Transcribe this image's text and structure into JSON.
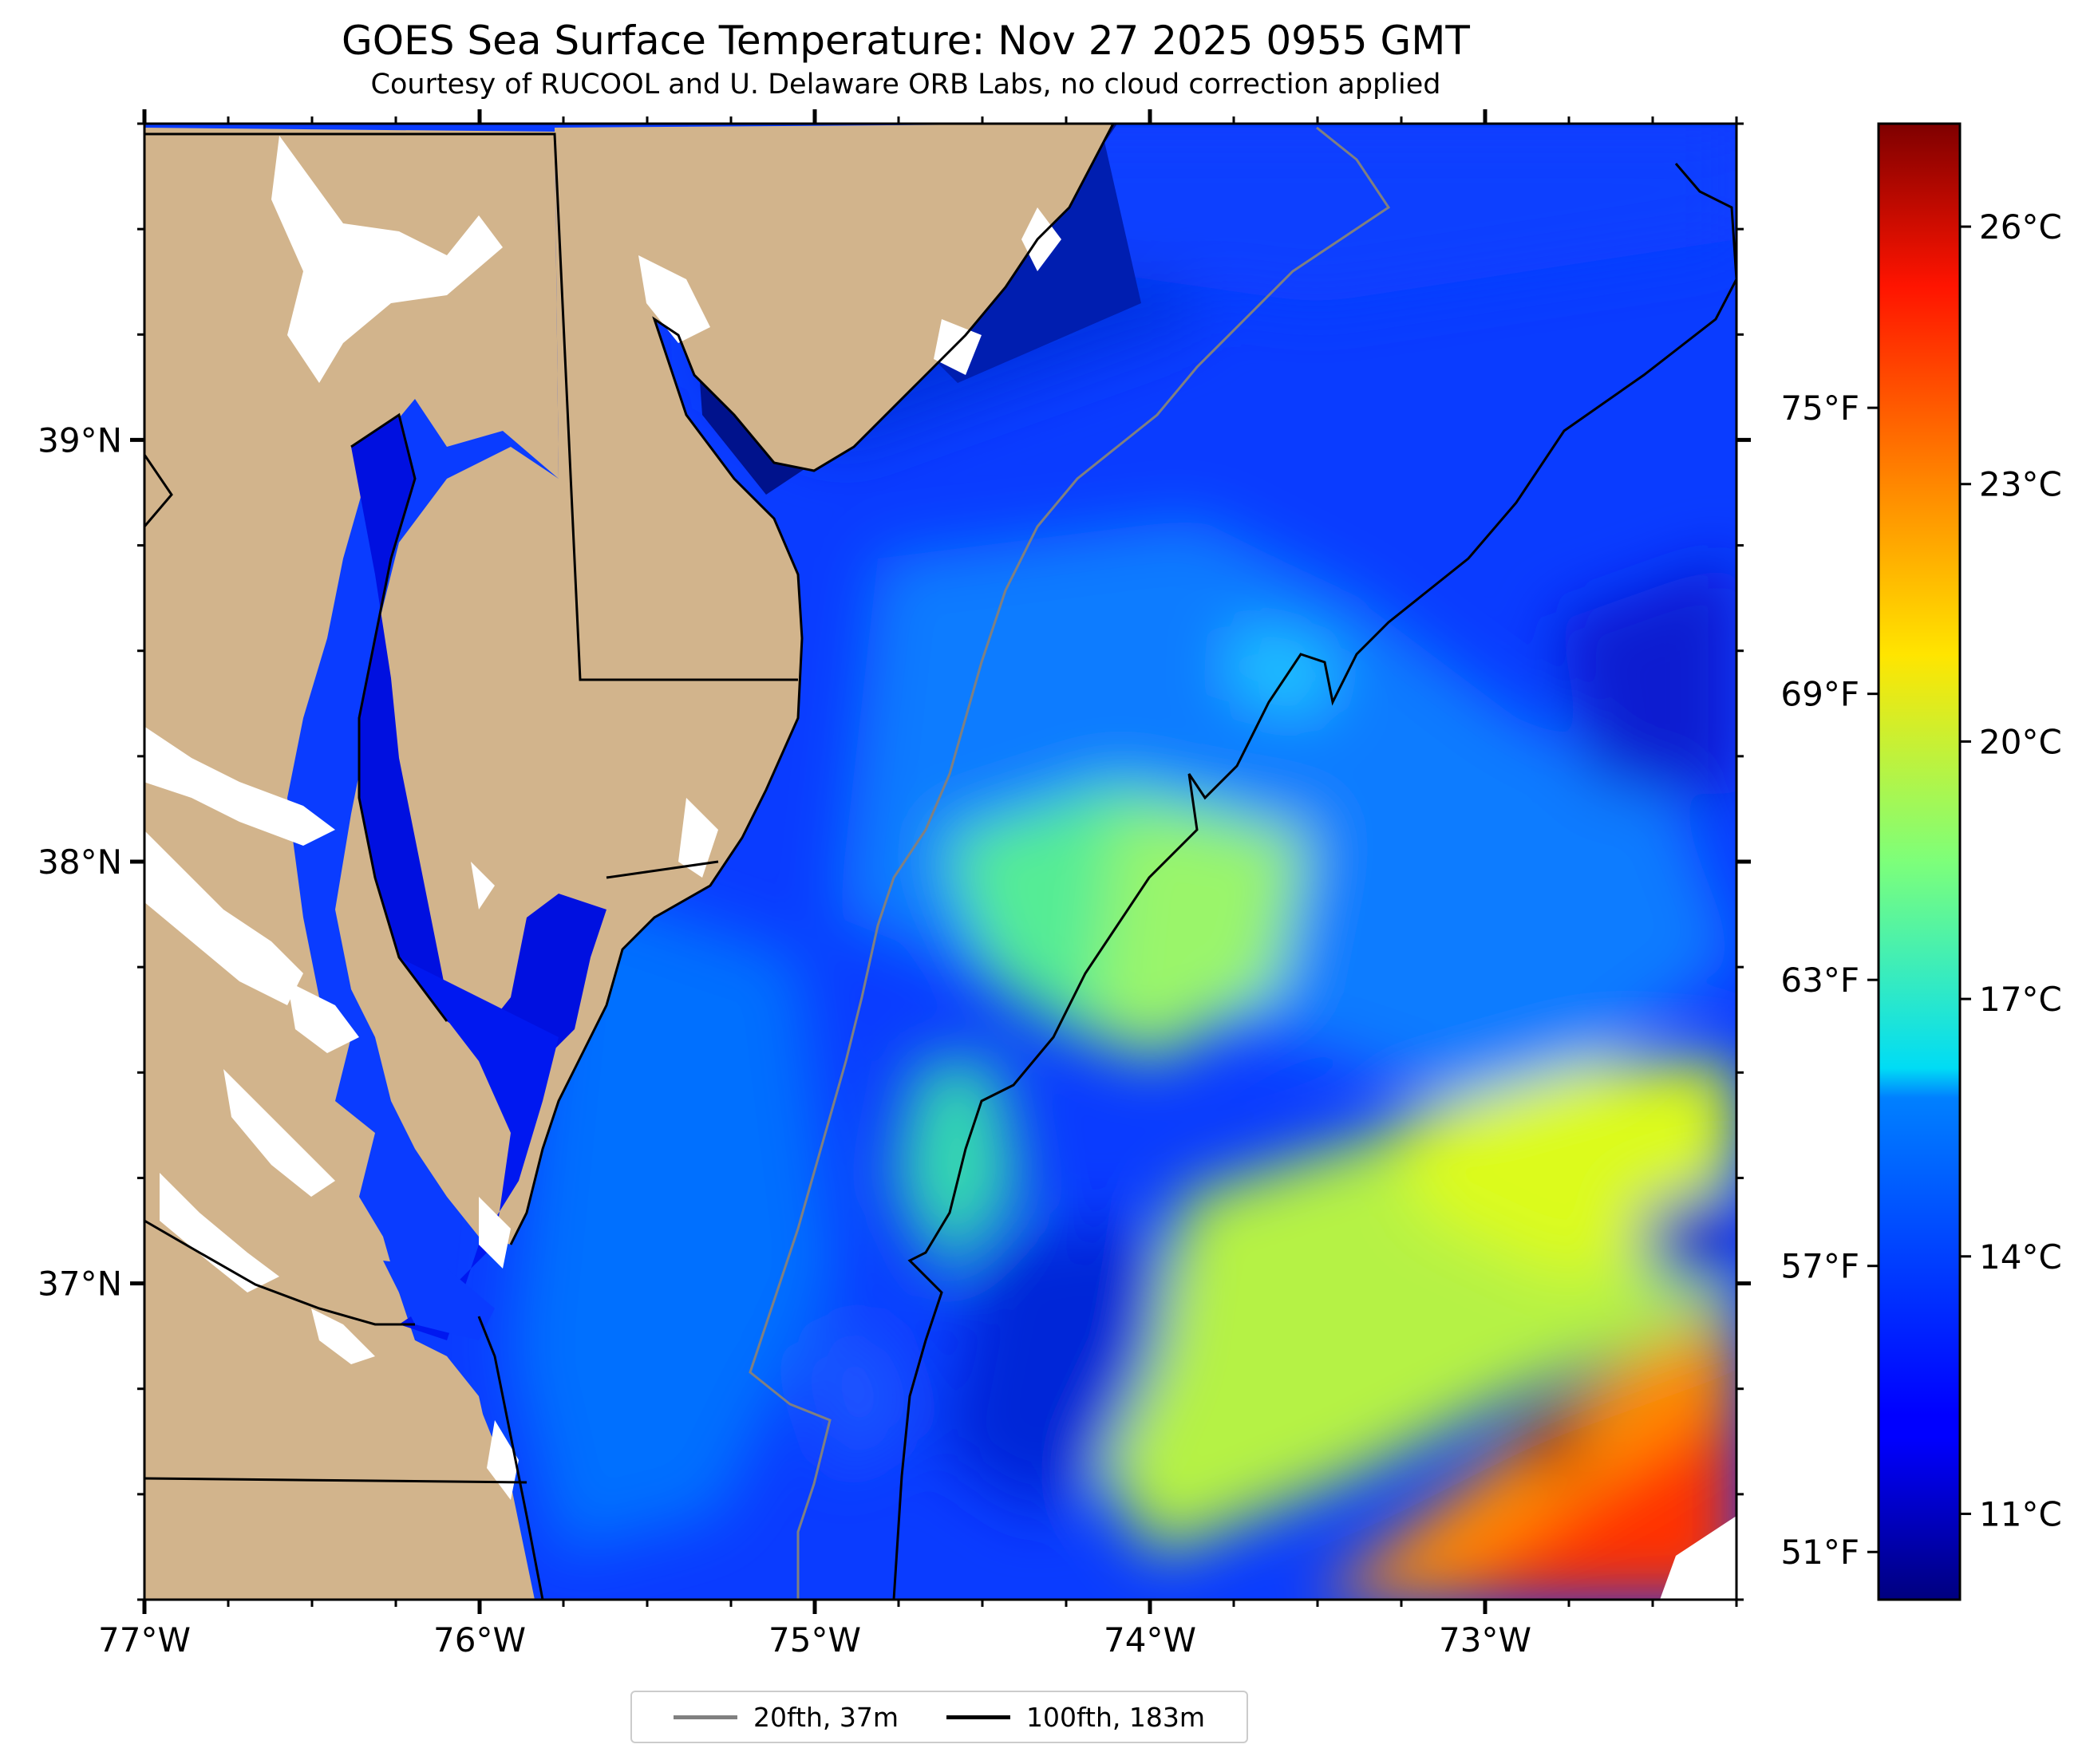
{
  "title": "GOES Sea Surface Temperature: Nov 27 2025 0955 GMT",
  "subtitle": "Courtesy of RUCOOL and U. Delaware ORB Labs, no cloud correction applied",
  "map": {
    "lon_range": [
      -77.0,
      -72.25
    ],
    "lat_range": [
      36.25,
      39.75
    ],
    "lon_ticks": [
      {
        "value": -77,
        "label": "77°W"
      },
      {
        "value": -76,
        "label": "76°W"
      },
      {
        "value": -75,
        "label": "75°W"
      },
      {
        "value": -74,
        "label": "74°W"
      },
      {
        "value": -73,
        "label": "73°W"
      }
    ],
    "lat_ticks": [
      {
        "value": 39,
        "label": "39°N"
      },
      {
        "value": 38,
        "label": "38°N"
      },
      {
        "value": 37,
        "label": "37°N"
      }
    ],
    "colors": {
      "land": "#d2b48c",
      "no_data": "#ffffff",
      "coastline": "#000000",
      "isobath_20": "#808080",
      "isobath_100": "#000000",
      "state_border": "#000000"
    }
  },
  "colorbar": {
    "colormap": "jet",
    "celsius_range": [
      10.0,
      27.2
    ],
    "celsius_ticks": [
      {
        "value": 11,
        "label": "11°C"
      },
      {
        "value": 14,
        "label": "14°C"
      },
      {
        "value": 17,
        "label": "17°C"
      },
      {
        "value": 20,
        "label": "20°C"
      },
      {
        "value": 23,
        "label": "23°C"
      },
      {
        "value": 26,
        "label": "26°C"
      }
    ],
    "fahrenheit_ticks": [
      {
        "value": 51,
        "label": "51°F"
      },
      {
        "value": 57,
        "label": "57°F"
      },
      {
        "value": 63,
        "label": "63°F"
      },
      {
        "value": 69,
        "label": "69°F"
      },
      {
        "value": 75,
        "label": "75°F"
      }
    ]
  },
  "legend": {
    "items": [
      {
        "label": "20fth, 37m",
        "color": "#808080"
      },
      {
        "label": "100fth, 183m",
        "color": "#000000"
      }
    ]
  }
}
